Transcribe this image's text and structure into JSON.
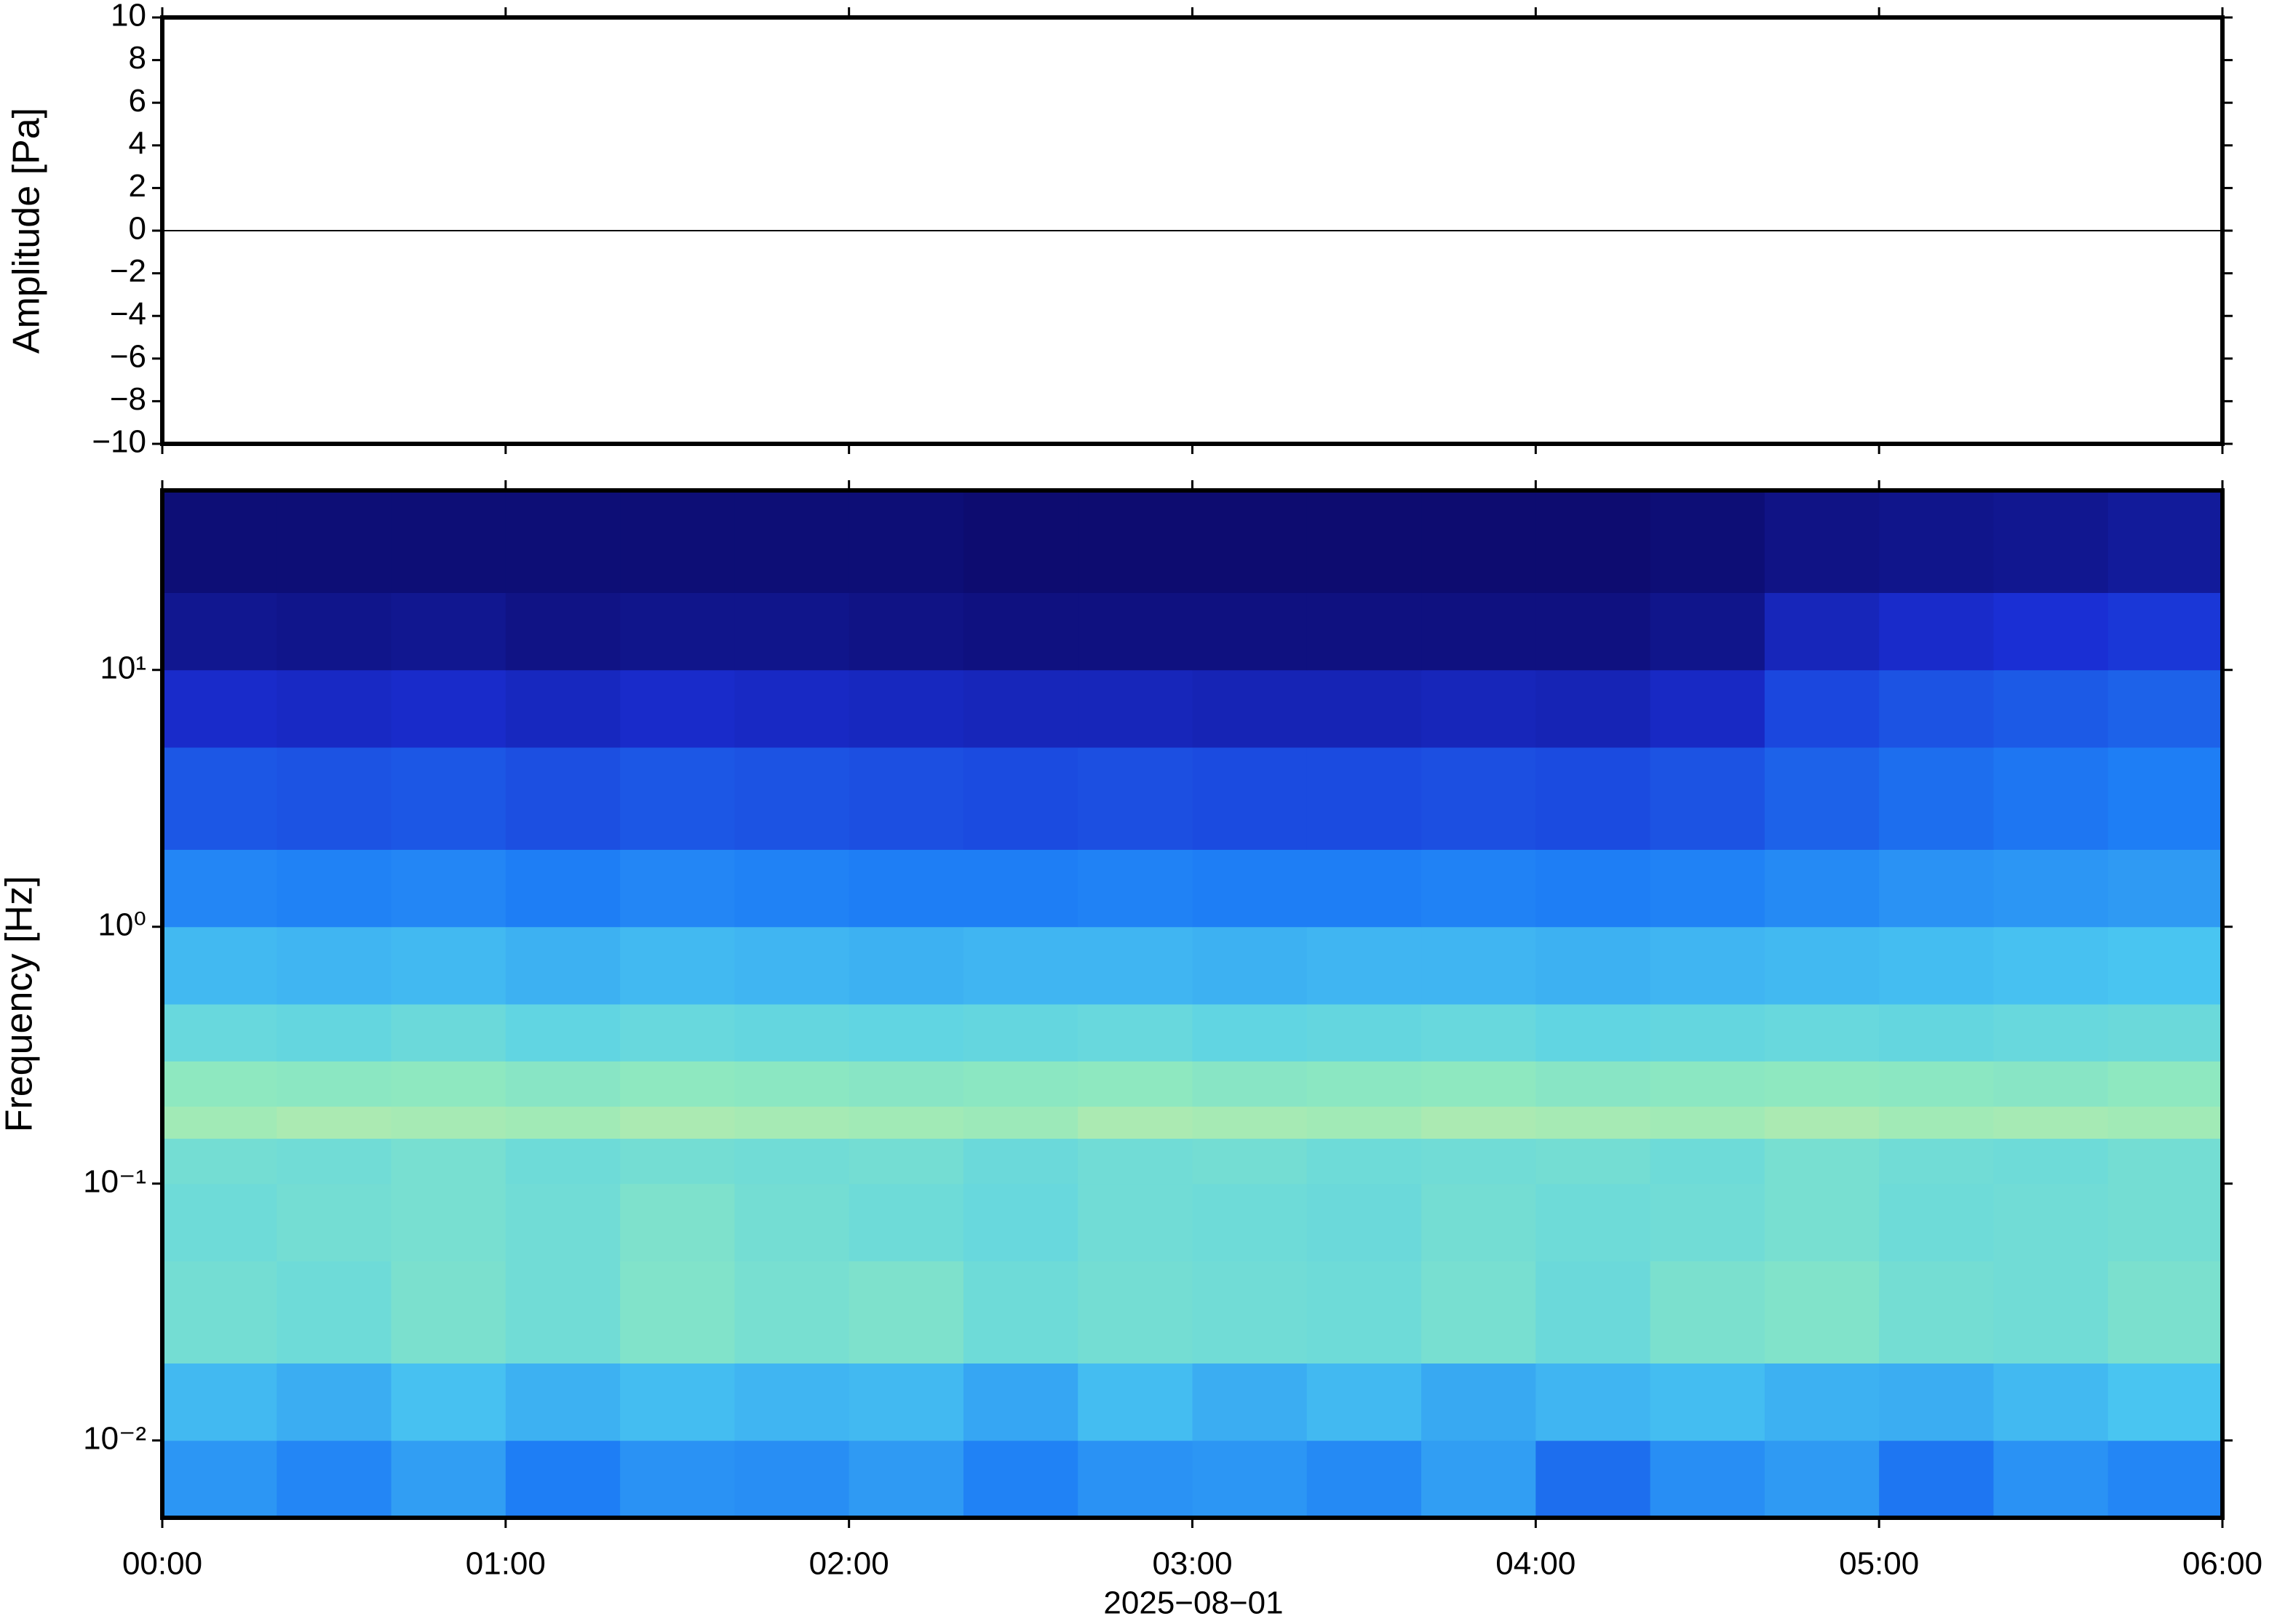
{
  "chart_data": [
    {
      "type": "line",
      "ylabel": "Amplitude [Pa]",
      "x": [
        0,
        360
      ],
      "values": [
        0,
        0
      ],
      "color": "#000000",
      "xlim": [
        0,
        360
      ],
      "ylim": [
        -10,
        10
      ],
      "yticks": [
        {
          "value": -10,
          "label": "−10"
        },
        {
          "value": -8,
          "label": "−8"
        },
        {
          "value": -6,
          "label": "−6"
        },
        {
          "value": -4,
          "label": "−4"
        },
        {
          "value": -2,
          "label": "−2"
        },
        0,
        2,
        4,
        6,
        8,
        10
      ]
    },
    {
      "type": "heatmap",
      "ylabel": "Frequency [Hz]",
      "xlabel": "2025−08−01",
      "xlim": [
        0,
        360
      ],
      "xticks": [
        {
          "value": 0,
          "label": "00:00"
        },
        {
          "value": 60,
          "label": "01:00"
        },
        {
          "value": 120,
          "label": "02:00"
        },
        {
          "value": 180,
          "label": "03:00"
        },
        {
          "value": 240,
          "label": "04:00"
        },
        {
          "value": 300,
          "label": "05:00"
        },
        {
          "value": 360,
          "label": "06:00"
        }
      ],
      "ylim": [
        0.005,
        50
      ],
      "log_y": true,
      "yticks": [
        {
          "value": 0.01,
          "label": "10⁻²"
        },
        {
          "value": 0.1,
          "label": "10⁻¹"
        },
        {
          "value": 1,
          "label": "10⁰"
        },
        {
          "value": 10,
          "label": "10¹"
        }
      ],
      "colormap": [
        "#0c0a6b",
        "#1a2fd4",
        "#1e7ef5",
        "#4ecdf0",
        "#8ee8c0",
        "#eef090"
      ],
      "x_edges": [
        0,
        20,
        40,
        60,
        80,
        100,
        120,
        140,
        160,
        180,
        200,
        220,
        240,
        260,
        280,
        300,
        320,
        340,
        360
      ],
      "y_edges": [
        0.005,
        0.01,
        0.02,
        0.05,
        0.1,
        0.15,
        0.2,
        0.3,
        0.5,
        1,
        2,
        5,
        10,
        20,
        50
      ],
      "values": [
        [
          0.46,
          0.42,
          0.48,
          0.4,
          0.45,
          0.44,
          0.47,
          0.41,
          0.45,
          0.46,
          0.43,
          0.48,
          0.36,
          0.44,
          0.47,
          0.38,
          0.45,
          0.42
        ],
        [
          0.55,
          0.52,
          0.57,
          0.53,
          0.56,
          0.54,
          0.55,
          0.5,
          0.56,
          0.52,
          0.55,
          0.51,
          0.54,
          0.56,
          0.53,
          0.52,
          0.55,
          0.58
        ],
        [
          0.72,
          0.7,
          0.74,
          0.71,
          0.76,
          0.73,
          0.75,
          0.7,
          0.72,
          0.71,
          0.7,
          0.73,
          0.69,
          0.74,
          0.76,
          0.72,
          0.71,
          0.74
        ],
        [
          0.7,
          0.72,
          0.73,
          0.71,
          0.75,
          0.72,
          0.7,
          0.68,
          0.71,
          0.7,
          0.69,
          0.72,
          0.7,
          0.71,
          0.73,
          0.7,
          0.71,
          0.72
        ],
        [
          0.72,
          0.71,
          0.73,
          0.7,
          0.72,
          0.71,
          0.72,
          0.69,
          0.71,
          0.72,
          0.7,
          0.71,
          0.72,
          0.7,
          0.73,
          0.71,
          0.7,
          0.72
        ],
        [
          0.84,
          0.86,
          0.85,
          0.84,
          0.86,
          0.85,
          0.84,
          0.83,
          0.86,
          0.85,
          0.84,
          0.86,
          0.85,
          0.84,
          0.86,
          0.84,
          0.85,
          0.84
        ],
        [
          0.8,
          0.79,
          0.8,
          0.78,
          0.8,
          0.79,
          0.78,
          0.79,
          0.8,
          0.78,
          0.79,
          0.8,
          0.78,
          0.79,
          0.8,
          0.79,
          0.78,
          0.8
        ],
        [
          0.68,
          0.67,
          0.69,
          0.66,
          0.68,
          0.67,
          0.66,
          0.67,
          0.68,
          0.66,
          0.67,
          0.68,
          0.66,
          0.67,
          0.68,
          0.67,
          0.68,
          0.69
        ],
        [
          0.55,
          0.54,
          0.55,
          0.53,
          0.55,
          0.54,
          0.53,
          0.54,
          0.54,
          0.53,
          0.54,
          0.54,
          0.53,
          0.54,
          0.55,
          0.56,
          0.57,
          0.58
        ],
        [
          0.42,
          0.41,
          0.42,
          0.4,
          0.42,
          0.41,
          0.4,
          0.4,
          0.41,
          0.4,
          0.4,
          0.41,
          0.4,
          0.41,
          0.43,
          0.45,
          0.46,
          0.47
        ],
        [
          0.3,
          0.29,
          0.3,
          0.28,
          0.3,
          0.29,
          0.28,
          0.27,
          0.28,
          0.27,
          0.27,
          0.28,
          0.27,
          0.29,
          0.33,
          0.36,
          0.38,
          0.4
        ],
        [
          0.18,
          0.17,
          0.18,
          0.16,
          0.18,
          0.17,
          0.16,
          0.15,
          0.15,
          0.14,
          0.14,
          0.15,
          0.14,
          0.17,
          0.26,
          0.29,
          0.31,
          0.33
        ],
        [
          0.07,
          0.06,
          0.07,
          0.05,
          0.06,
          0.06,
          0.05,
          0.04,
          0.04,
          0.04,
          0.04,
          0.04,
          0.04,
          0.06,
          0.15,
          0.18,
          0.2,
          0.22
        ],
        [
          0.02,
          0.02,
          0.02,
          0.02,
          0.02,
          0.02,
          0.02,
          0.01,
          0.01,
          0.01,
          0.01,
          0.01,
          0.01,
          0.02,
          0.05,
          0.06,
          0.07,
          0.09
        ]
      ]
    }
  ]
}
